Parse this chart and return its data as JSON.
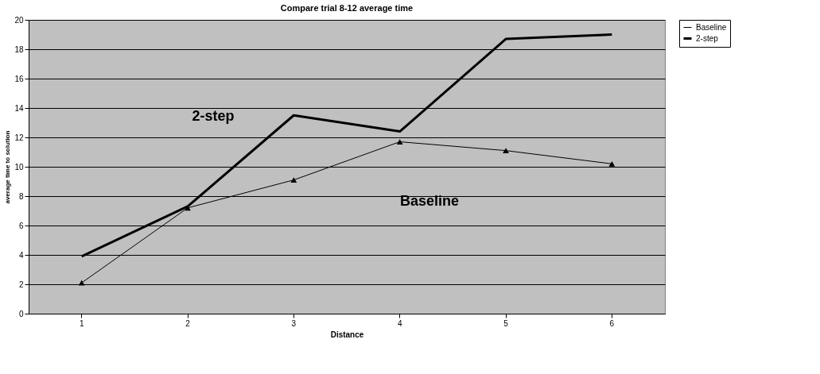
{
  "chart_data": {
    "type": "line",
    "title": "Compare trial 8-12 average time",
    "xlabel": "Distance",
    "ylabel": "average time to solution",
    "categories": [
      "1",
      "2",
      "3",
      "4",
      "5",
      "6"
    ],
    "series": [
      {
        "name": "Baseline",
        "color": "#000000",
        "marker": "triangle",
        "values": [
          2.1,
          7.2,
          9.1,
          11.7,
          11.1,
          10.2
        ]
      },
      {
        "name": "2-step",
        "color": "#000000",
        "marker": "none",
        "values": [
          3.9,
          7.3,
          13.5,
          12.4,
          18.7,
          19.0
        ]
      }
    ],
    "annotations": [
      "2-step",
      "Baseline"
    ],
    "ylim": [
      0,
      20
    ],
    "yticks": [
      0,
      2,
      4,
      6,
      8,
      10,
      12,
      14,
      16,
      18,
      20
    ],
    "grid": "y",
    "legend": "right"
  }
}
